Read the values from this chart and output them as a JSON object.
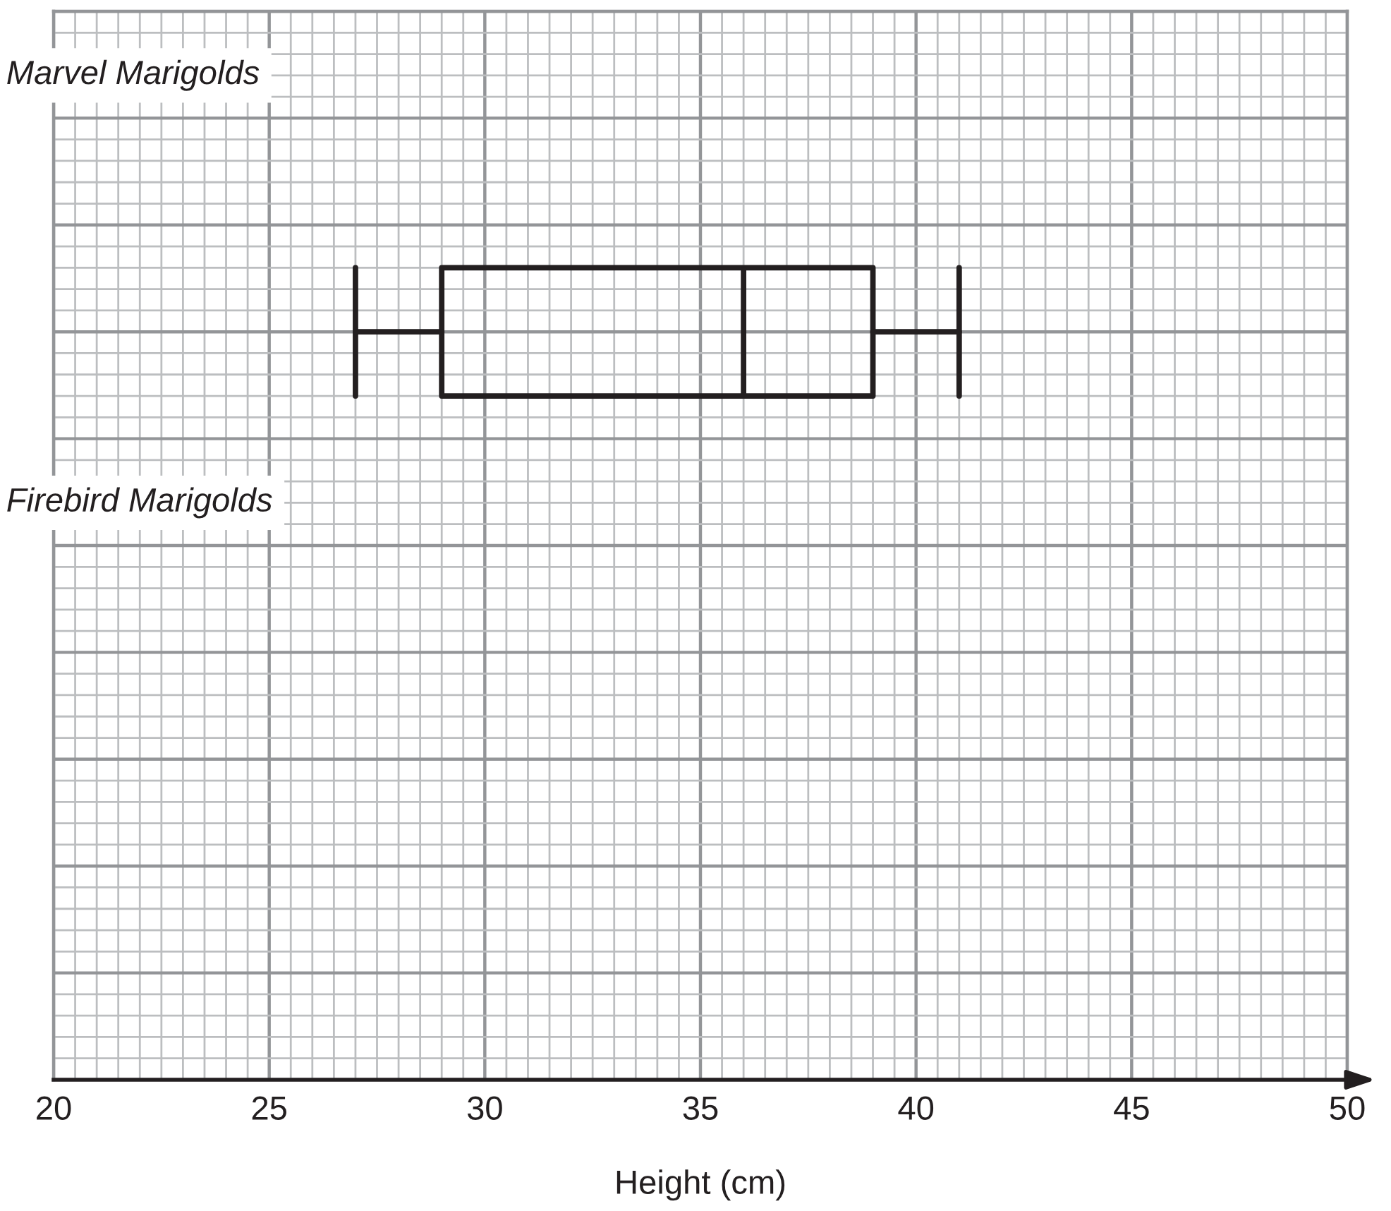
{
  "chart_data": {
    "type": "box",
    "orientation": "horizontal",
    "xlabel": "Height (cm)",
    "categories": [
      "Marvel Marigolds",
      "Firebird Marigolds"
    ],
    "boxes": [
      {
        "low": 27,
        "q1": 29,
        "median": 36,
        "q3": 39,
        "high": 41
      },
      null
    ],
    "xlim": [
      20,
      50
    ],
    "xticks": [
      20,
      25,
      30,
      35,
      40,
      45,
      50
    ],
    "grid": true,
    "tick_labels": "x"
  }
}
